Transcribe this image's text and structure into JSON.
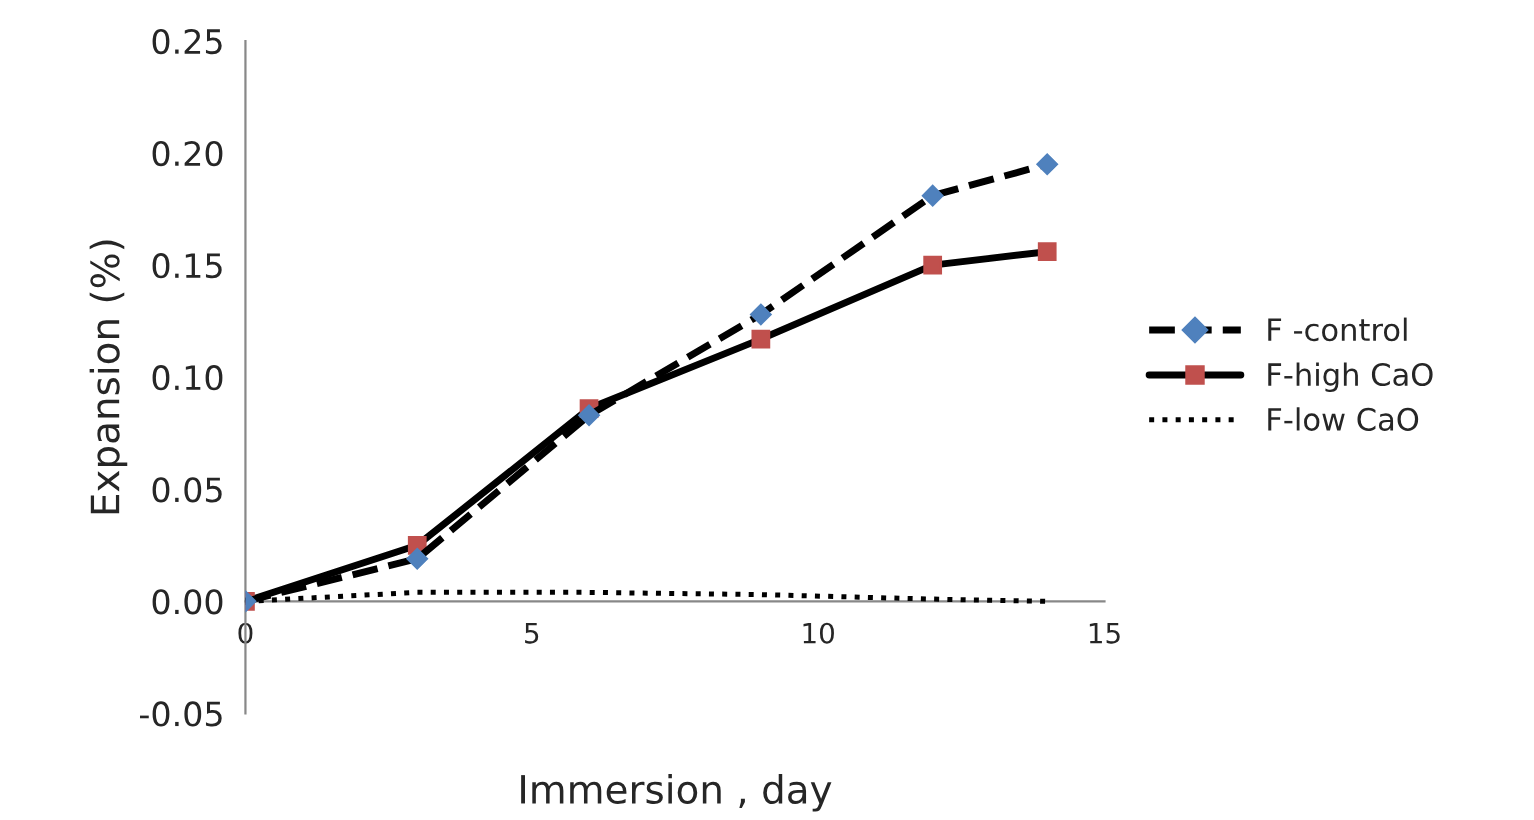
{
  "chart_data": {
    "type": "line",
    "xlabel": "Immersion , day",
    "ylabel": "Expansion (%)",
    "series": [
      {
        "name": "F -control",
        "color": "#4f81bd",
        "x": [
          0,
          3,
          6,
          9,
          12,
          14
        ],
        "values": [
          0,
          0.019,
          0.083,
          0.128,
          0.181,
          0.195
        ],
        "marker": "diamond",
        "line_style": "dashed"
      },
      {
        "name": "F-high CaO",
        "color": "#c0504d",
        "x": [
          0,
          3,
          6,
          9,
          12,
          14
        ],
        "values": [
          0,
          0.025,
          0.086,
          0.117,
          0.15,
          0.156
        ],
        "marker": "square",
        "line_style": "solid"
      },
      {
        "name": "F-low CaO",
        "color": "#000000",
        "x": [
          0,
          3,
          6,
          9,
          12,
          14
        ],
        "values": [
          0,
          0.004,
          0.004,
          0.003,
          0.001,
          0
        ],
        "marker": "none",
        "line_style": "dotted"
      }
    ],
    "xlim": [
      0,
      15
    ],
    "xticks": [
      0,
      5,
      10,
      15
    ],
    "ylim": [
      -0.05,
      0.25
    ],
    "yticks": [
      {
        "value": -0.05,
        "label": "-0.05"
      },
      {
        "value": 0,
        "label": "0.00"
      },
      {
        "value": 0.05,
        "label": "0.05"
      },
      {
        "value": 0.1,
        "label": "0.10"
      },
      {
        "value": 0.15,
        "label": "0.15"
      },
      {
        "value": 0.2,
        "label": "0.20"
      },
      {
        "value": 0.25,
        "label": "0.25"
      }
    ],
    "grid": false,
    "legend": "right"
  }
}
